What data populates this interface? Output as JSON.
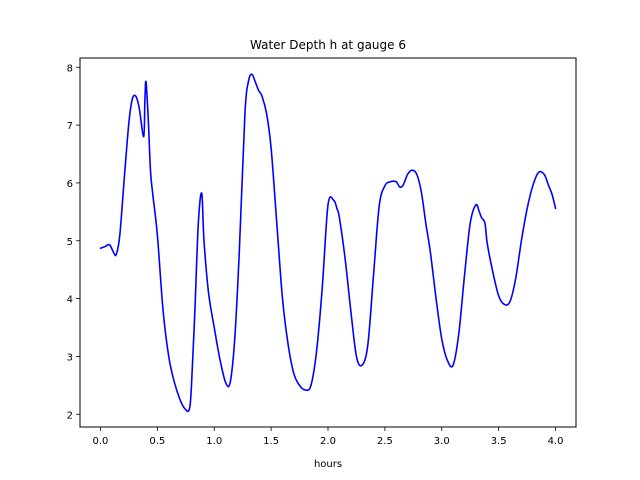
{
  "chart_data": {
    "type": "line",
    "title": "Water Depth h at gauge 6",
    "xlabel": "hours",
    "ylabel": "",
    "xlim": [
      -0.18,
      4.18
    ],
    "ylim": [
      1.78,
      8.16
    ],
    "xticks": [
      "0.0",
      "0.5",
      "1.0",
      "1.5",
      "2.0",
      "2.5",
      "3.0",
      "3.5",
      "4.0"
    ],
    "xtick_values": [
      0.0,
      0.5,
      1.0,
      1.5,
      2.0,
      2.5,
      3.0,
      3.5,
      4.0
    ],
    "yticks": [
      "2",
      "3",
      "4",
      "5",
      "6",
      "7",
      "8"
    ],
    "ytick_values": [
      2,
      3,
      4,
      5,
      6,
      7,
      8
    ],
    "grid": false,
    "legend": false,
    "series": [
      {
        "color": "#0000ff",
        "x": [
          0.0,
          0.04,
          0.08,
          0.12,
          0.14,
          0.17,
          0.21,
          0.25,
          0.28,
          0.31,
          0.34,
          0.38,
          0.39,
          0.4,
          0.42,
          0.44,
          0.46,
          0.5,
          0.55,
          0.6,
          0.65,
          0.7,
          0.74,
          0.78,
          0.8,
          0.83,
          0.86,
          0.89,
          0.91,
          0.95,
          1.0,
          1.05,
          1.1,
          1.14,
          1.18,
          1.22,
          1.27,
          1.3,
          1.33,
          1.36,
          1.39,
          1.42,
          1.46,
          1.5,
          1.55,
          1.6,
          1.65,
          1.7,
          1.75,
          1.8,
          1.85,
          1.9,
          1.95,
          2.0,
          2.05,
          2.08,
          2.1,
          2.15,
          2.2,
          2.25,
          2.3,
          2.35,
          2.4,
          2.45,
          2.5,
          2.55,
          2.6,
          2.63,
          2.66,
          2.7,
          2.74,
          2.78,
          2.82,
          2.86,
          2.9,
          2.95,
          3.0,
          3.05,
          3.1,
          3.15,
          3.2,
          3.25,
          3.3,
          3.33,
          3.35,
          3.38,
          3.4,
          3.45,
          3.5,
          3.55,
          3.6,
          3.65,
          3.7,
          3.75,
          3.8,
          3.85,
          3.9,
          3.94,
          3.97,
          4.0
        ],
        "y": [
          4.87,
          4.9,
          4.93,
          4.78,
          4.77,
          5.1,
          6.1,
          7.05,
          7.45,
          7.5,
          7.3,
          6.8,
          7.4,
          7.75,
          7.1,
          6.2,
          5.8,
          5.1,
          3.8,
          3.0,
          2.55,
          2.25,
          2.1,
          2.08,
          2.5,
          3.8,
          5.3,
          5.82,
          5.0,
          4.1,
          3.5,
          2.95,
          2.55,
          2.55,
          3.3,
          4.8,
          7.2,
          7.75,
          7.88,
          7.75,
          7.6,
          7.5,
          7.2,
          6.6,
          5.3,
          4.0,
          3.2,
          2.7,
          2.5,
          2.42,
          2.5,
          3.1,
          4.2,
          5.62,
          5.7,
          5.55,
          5.4,
          4.7,
          3.8,
          3.0,
          2.85,
          3.2,
          4.4,
          5.6,
          5.95,
          6.02,
          6.02,
          5.93,
          5.96,
          6.15,
          6.22,
          6.15,
          5.85,
          5.3,
          4.8,
          4.0,
          3.3,
          2.93,
          2.85,
          3.4,
          4.4,
          5.3,
          5.62,
          5.5,
          5.4,
          5.3,
          4.95,
          4.45,
          4.05,
          3.9,
          3.95,
          4.35,
          5.0,
          5.55,
          5.95,
          6.18,
          6.15,
          5.95,
          5.8,
          5.56
        ]
      }
    ]
  }
}
